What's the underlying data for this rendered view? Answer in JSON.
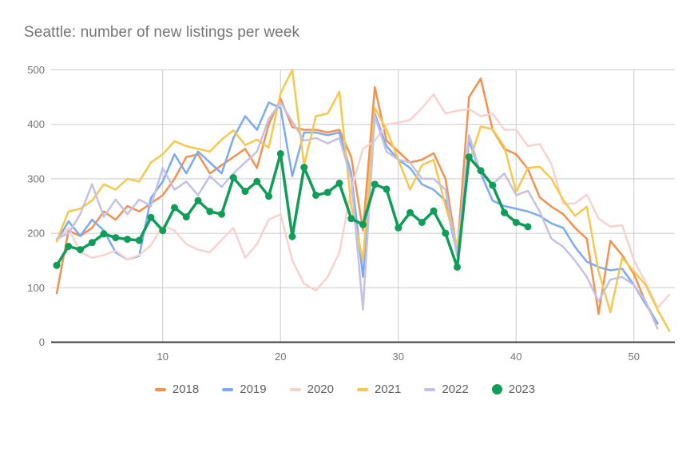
{
  "title": "Seattle: number of new listings per week",
  "colors": {
    "background": "#ffffff",
    "gridline": "#cccccc",
    "axis_baseline": "#424242",
    "axis_label": "#757575",
    "title_text": "#757575",
    "legend_text": "#616161"
  },
  "chart_data": {
    "type": "line",
    "title": "Seattle: number of new listings per week",
    "xlabel": "",
    "ylabel": "",
    "x_axis": {
      "min": 1,
      "max": 53,
      "ticks": [
        10,
        20,
        30,
        40,
        50
      ]
    },
    "y_axis": {
      "min": 0,
      "max": 500,
      "ticks": [
        0,
        100,
        200,
        300,
        400,
        500
      ]
    },
    "grid": true,
    "legend_position": "bottom",
    "series": [
      {
        "name": "2018",
        "color": "#F7904D",
        "marker": false,
        "swatch": "bar",
        "start_week": 1,
        "values": [
          90,
          205,
          195,
          210,
          240,
          225,
          250,
          240,
          255,
          270,
          300,
          340,
          345,
          310,
          325,
          340,
          355,
          320,
          400,
          447,
          395,
          390,
          390,
          385,
          390,
          340,
          205,
          468,
          370,
          350,
          330,
          335,
          347,
          300,
          165,
          450,
          484,
          390,
          355,
          345,
          318,
          266,
          249,
          235,
          210,
          190,
          52,
          186,
          160,
          125,
          73,
          34
        ]
      },
      {
        "name": "2019",
        "color": "#7BAAF7",
        "marker": false,
        "swatch": "bar",
        "start_week": 1,
        "values": [
          185,
          222,
          195,
          225,
          205,
          165,
          152,
          158,
          265,
          295,
          345,
          310,
          350,
          330,
          310,
          375,
          415,
          390,
          440,
          430,
          305,
          385,
          385,
          380,
          385,
          310,
          120,
          420,
          360,
          335,
          320,
          290,
          280,
          260,
          160,
          370,
          310,
          260,
          250,
          245,
          240,
          232,
          218,
          210,
          175,
          148,
          138,
          132,
          135,
          105,
          70,
          35
        ]
      },
      {
        "name": "2020",
        "color": "#F7D3D0",
        "marker": false,
        "swatch": "bar",
        "start_week": 1,
        "values": [
          185,
          210,
          165,
          155,
          160,
          168,
          152,
          160,
          178,
          215,
          205,
          180,
          170,
          165,
          188,
          210,
          155,
          180,
          225,
          235,
          150,
          107,
          95,
          120,
          165,
          280,
          355,
          370,
          400,
          403,
          408,
          430,
          455,
          420,
          425,
          428,
          415,
          420,
          390,
          390,
          360,
          364,
          327,
          254,
          255,
          271,
          227,
          212,
          215,
          150,
          110,
          63,
          87
        ]
      },
      {
        "name": "2021",
        "color": "#F7C84B",
        "marker": false,
        "swatch": "bar",
        "start_week": 1,
        "values": [
          186,
          240,
          245,
          260,
          290,
          280,
          300,
          295,
          330,
          345,
          369,
          360,
          355,
          350,
          372,
          389,
          362,
          372,
          357,
          457,
          500,
          325,
          415,
          420,
          460,
          250,
          150,
          430,
          390,
          335,
          280,
          325,
          335,
          250,
          178,
          330,
          396,
          391,
          359,
          276,
          320,
          322,
          300,
          261,
          232,
          249,
          130,
          55,
          155,
          130,
          105,
          60,
          21
        ]
      },
      {
        "name": "2022",
        "color": "#C3C2E4",
        "marker": false,
        "swatch": "bar",
        "start_week": 1,
        "values": [
          190,
          200,
          235,
          290,
          230,
          262,
          235,
          262,
          250,
          320,
          280,
          295,
          270,
          305,
          285,
          310,
          330,
          350,
          410,
          440,
          405,
          370,
          375,
          365,
          375,
          300,
          60,
          415,
          350,
          335,
          330,
          300,
          300,
          280,
          158,
          380,
          310,
          290,
          310,
          270,
          278,
          240,
          190,
          175,
          150,
          120,
          75,
          115,
          120,
          105,
          75,
          25
        ]
      },
      {
        "name": "2023",
        "color": "#0F9D58",
        "marker": true,
        "swatch": "circle",
        "start_week": 1,
        "values": [
          141,
          176,
          170,
          183,
          199,
          192,
          189,
          187,
          229,
          205,
          247,
          230,
          260,
          240,
          235,
          302,
          277,
          295,
          268,
          346,
          194,
          321,
          270,
          275,
          292,
          227,
          216,
          290,
          281,
          210,
          238,
          220,
          241,
          200,
          138,
          340,
          315,
          288,
          238,
          220,
          212
        ]
      }
    ]
  },
  "legend": {
    "items": [
      "2018",
      "2019",
      "2020",
      "2021",
      "2022",
      "2023"
    ]
  }
}
